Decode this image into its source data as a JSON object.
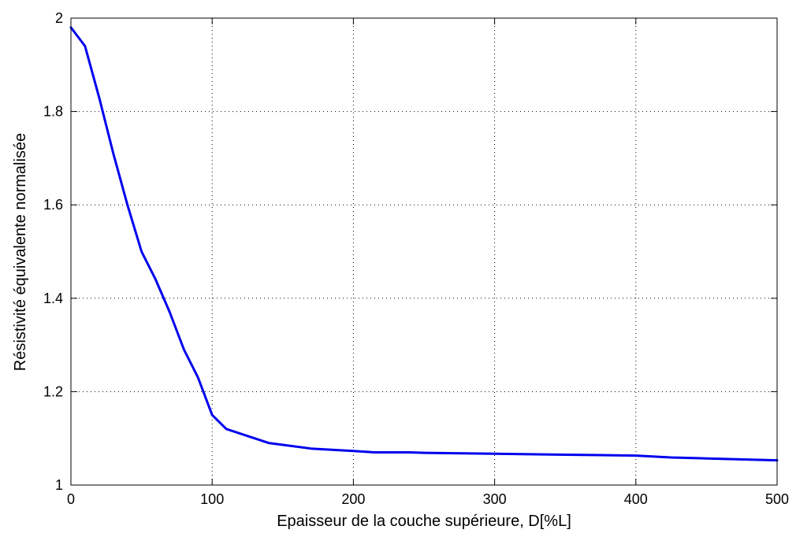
{
  "chart_data": {
    "type": "line",
    "title": "",
    "xlabel": "Epaisseur de la couche supérieure, D[%L]",
    "ylabel": "Résistivité équivalente normalisée",
    "xlim": [
      0,
      500
    ],
    "ylim": [
      1,
      2
    ],
    "xticks": [
      0,
      100,
      200,
      300,
      400,
      500
    ],
    "yticks": [
      1,
      1.2,
      1.4,
      1.6,
      1.8,
      2
    ],
    "xtick_labels": [
      "0",
      "100",
      "200",
      "300",
      "400",
      "500"
    ],
    "ytick_labels": [
      "1",
      "1.2",
      "1.4",
      "1.6",
      "1.8",
      "2"
    ],
    "grid": true,
    "line_color": "#0000ee",
    "series": [
      {
        "x": [
          0,
          10,
          20,
          30,
          40,
          50,
          60,
          70,
          80,
          90,
          100,
          110,
          140,
          170,
          200,
          215,
          240,
          250,
          300,
          350,
          400,
          425,
          450,
          500
        ],
        "y": [
          1.98,
          1.94,
          1.83,
          1.71,
          1.6,
          1.5,
          1.44,
          1.37,
          1.29,
          1.23,
          1.15,
          1.12,
          1.09,
          1.078,
          1.073,
          1.07,
          1.07,
          1.069,
          1.067,
          1.065,
          1.063,
          1.059,
          1.057,
          1.053
        ]
      }
    ]
  }
}
